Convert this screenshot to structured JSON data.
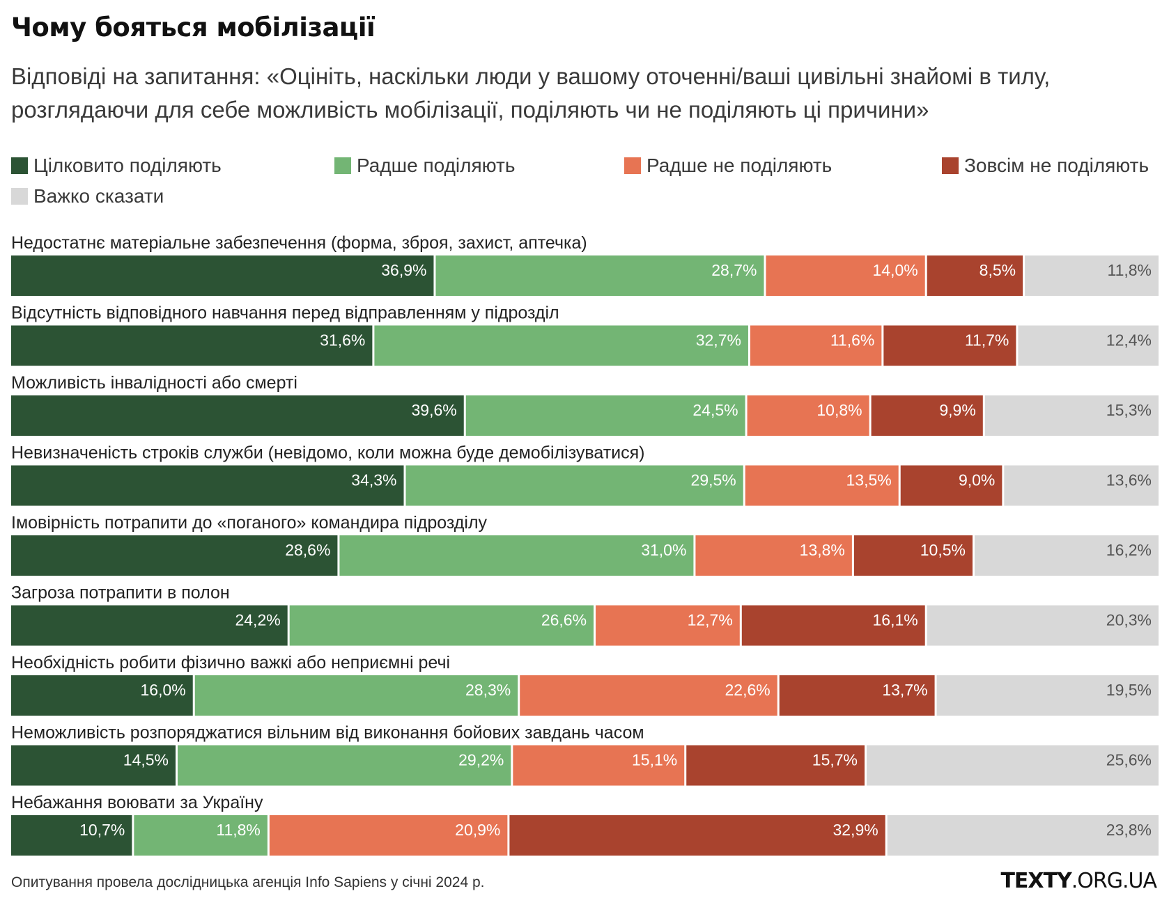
{
  "chart_data": {
    "type": "bar",
    "orientation": "horizontal",
    "stacked": true,
    "title": "Чому бояться мобілізації",
    "subtitle": "Відповіді на запитання: «Оцініть, наскільки люди у вашому оточенні/ваші цивільні знайомі в тилу, розглядаючи для себе можливість мобілізації, поділяють чи не поділяють ці причини»",
    "unit": "%",
    "categories": [
      "Недостатнє матеріальне забезпечення (форма, зброя, захист, аптечка)",
      "Відсутність відповідного навчання перед відправленням у підрозділ",
      "Можливість інвалідності або смерті",
      "Невизначеність строків служби (невідомо, коли можна буде демобілізуватися)",
      "Імовірність потрапити до «поганого» командира підрозділу",
      "Загроза потрапити в полон",
      "Необхідність робити фізично важкі або неприємні речі",
      "Неможливість розпоряджатися вільним від виконання бойових завдань часом",
      "Небажання воювати за Україну"
    ],
    "series": [
      {
        "name": "Цілковито поділяють",
        "color": "#2c5334",
        "values": [
          36.9,
          31.6,
          39.6,
          34.3,
          28.6,
          24.2,
          16.0,
          14.5,
          10.7
        ],
        "labels": [
          "36,9%",
          "31,6%",
          "39,6%",
          "34,3%",
          "28,6%",
          "24,2%",
          "16,0%",
          "14,5%",
          "10,7%"
        ]
      },
      {
        "name": "Радше поділяють",
        "color": "#73b574",
        "values": [
          28.7,
          32.7,
          24.5,
          29.5,
          31.0,
          26.6,
          28.3,
          29.2,
          11.8
        ],
        "labels": [
          "28,7%",
          "32,7%",
          "24,5%",
          "29,5%",
          "31,0%",
          "26,6%",
          "28,3%",
          "29,2%",
          "11,8%"
        ]
      },
      {
        "name": "Радше не поділяють",
        "color": "#e77453",
        "values": [
          14.0,
          11.6,
          10.8,
          13.5,
          13.8,
          12.7,
          22.6,
          15.1,
          20.9
        ],
        "labels": [
          "14,0%",
          "11,6%",
          "10,8%",
          "13,5%",
          "13,8%",
          "12,7%",
          "22,6%",
          "15,1%",
          "20,9%"
        ]
      },
      {
        "name": "Зовсім не поділяють",
        "color": "#a9432e",
        "values": [
          8.5,
          11.7,
          9.9,
          9.0,
          10.5,
          16.1,
          13.7,
          15.7,
          32.9
        ],
        "labels": [
          "8,5%",
          "11,7%",
          "9,9%",
          "9,0%",
          "10,5%",
          "16,1%",
          "13,7%",
          "15,7%",
          "32,9%"
        ]
      },
      {
        "name": "Важко сказати",
        "color": "#d8d8d8",
        "values": [
          11.8,
          12.4,
          15.3,
          13.6,
          16.2,
          20.3,
          19.5,
          25.6,
          23.8
        ],
        "labels": [
          "11,8%",
          "12,4%",
          "15,3%",
          "13,6%",
          "16,2%",
          "20,3%",
          "19,5%",
          "25,6%",
          "23,8%"
        ]
      }
    ],
    "label_colors": {
      "dark": "#ffffff",
      "light": "#555555"
    },
    "legend_position": "top",
    "grid": false
  },
  "footer": {
    "note": "Опитування провела дослідницька агенція Info Sapiens у січні 2024 р.",
    "brand_bold": "TEXTY",
    "brand_rest": ".ORG.UA"
  }
}
